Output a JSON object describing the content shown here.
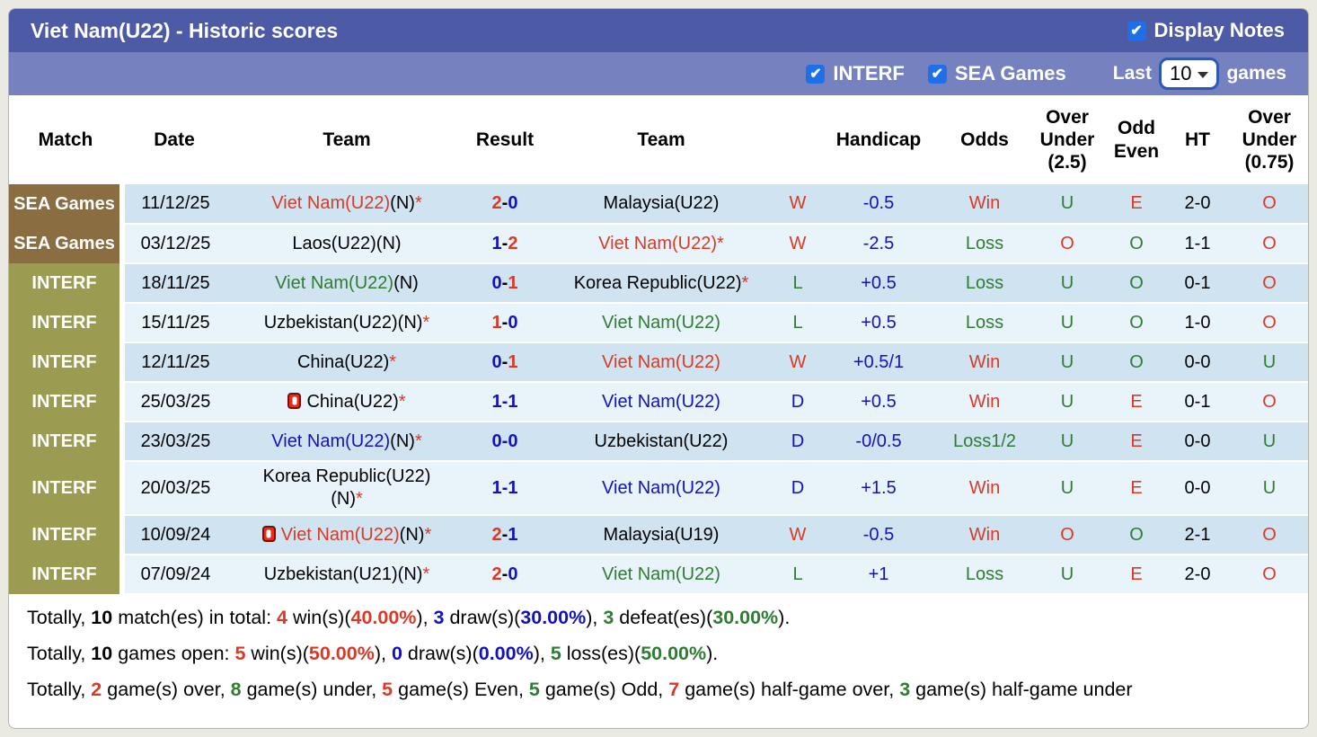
{
  "header": {
    "title": "Viet Nam(U22) - Historic scores",
    "display_notes_label": "Display Notes"
  },
  "filter_bar": {
    "interf_label": "INTERF",
    "sea_games_label": "SEA Games",
    "last_label": "Last",
    "games_label": "games",
    "last_games_value": "10"
  },
  "colors": {
    "title_bar": "#4d5ba6",
    "filter_bar": "#7682c0",
    "checkbox_blue": "#1e6fe8",
    "sea_games_cell": "#8a6d40",
    "interf_cell": "#9b9b51",
    "row_dark": "#cfe3f1",
    "row_light": "#e9f3fa",
    "win_red": "#d93a26",
    "draw_blue": "#1313bd",
    "loss_green": "#2e7d32"
  },
  "table": {
    "columns": [
      "Match",
      "Date",
      "Team",
      "Result",
      "Team",
      "",
      "Handicap",
      "Odds",
      "Over Under (2.5)",
      "Odd Even",
      "HT",
      "Over Under (0.75)"
    ],
    "rows": [
      {
        "match": "SEA Games",
        "match_type": "sea",
        "date": "11/12/25",
        "home_icon": false,
        "home": [
          {
            "t": "Viet Nam(U22)",
            "c": "red"
          },
          {
            "t": "(N)",
            "c": "black"
          },
          {
            "t": "*",
            "c": "red"
          }
        ],
        "result": [
          {
            "t": "2",
            "c": "red"
          },
          {
            "t": "-",
            "c": "black"
          },
          {
            "t": "0",
            "c": "blue"
          }
        ],
        "away_icon": false,
        "away": [
          {
            "t": "Malaysia(U22)",
            "c": "black"
          }
        ],
        "wdl": {
          "t": "W",
          "c": "red"
        },
        "handicap": "-0.5",
        "odds": {
          "t": "Win",
          "c": "red"
        },
        "ou25": {
          "t": "U",
          "c": "green"
        },
        "oddeven": {
          "t": "E",
          "c": "red"
        },
        "ht": "2-0",
        "ou075": {
          "t": "O",
          "c": "red"
        }
      },
      {
        "match": "SEA Games",
        "match_type": "sea",
        "date": "03/12/25",
        "home_icon": false,
        "home": [
          {
            "t": "Laos(U22)(N)",
            "c": "black"
          }
        ],
        "result": [
          {
            "t": "1",
            "c": "blue"
          },
          {
            "t": "-",
            "c": "black"
          },
          {
            "t": "2",
            "c": "red"
          }
        ],
        "away_icon": false,
        "away": [
          {
            "t": "Viet Nam(U22)",
            "c": "red"
          },
          {
            "t": "*",
            "c": "red"
          }
        ],
        "wdl": {
          "t": "W",
          "c": "red"
        },
        "handicap": "-2.5",
        "odds": {
          "t": "Loss",
          "c": "green"
        },
        "ou25": {
          "t": "O",
          "c": "red"
        },
        "oddeven": {
          "t": "O",
          "c": "green"
        },
        "ht": "1-1",
        "ou075": {
          "t": "O",
          "c": "red"
        }
      },
      {
        "match": "INTERF",
        "match_type": "interf",
        "date": "18/11/25",
        "home_icon": false,
        "home": [
          {
            "t": "Viet Nam(U22)",
            "c": "green"
          },
          {
            "t": "(N)",
            "c": "black"
          }
        ],
        "result": [
          {
            "t": "0",
            "c": "blue"
          },
          {
            "t": "-",
            "c": "black"
          },
          {
            "t": "1",
            "c": "red"
          }
        ],
        "away_icon": false,
        "away": [
          {
            "t": "Korea Republic(U22)",
            "c": "black"
          },
          {
            "t": "*",
            "c": "red"
          }
        ],
        "wdl": {
          "t": "L",
          "c": "green"
        },
        "handicap": "+0.5",
        "odds": {
          "t": "Loss",
          "c": "green"
        },
        "ou25": {
          "t": "U",
          "c": "green"
        },
        "oddeven": {
          "t": "O",
          "c": "green"
        },
        "ht": "0-1",
        "ou075": {
          "t": "O",
          "c": "red"
        }
      },
      {
        "match": "INTERF",
        "match_type": "interf",
        "date": "15/11/25",
        "home_icon": false,
        "home": [
          {
            "t": "Uzbekistan(U22)(N)",
            "c": "black"
          },
          {
            "t": "*",
            "c": "red"
          }
        ],
        "result": [
          {
            "t": "1",
            "c": "red"
          },
          {
            "t": "-",
            "c": "black"
          },
          {
            "t": "0",
            "c": "blue"
          }
        ],
        "away_icon": false,
        "away": [
          {
            "t": "Viet Nam(U22)",
            "c": "green"
          }
        ],
        "wdl": {
          "t": "L",
          "c": "green"
        },
        "handicap": "+0.5",
        "odds": {
          "t": "Loss",
          "c": "green"
        },
        "ou25": {
          "t": "U",
          "c": "green"
        },
        "oddeven": {
          "t": "O",
          "c": "green"
        },
        "ht": "1-0",
        "ou075": {
          "t": "O",
          "c": "red"
        }
      },
      {
        "match": "INTERF",
        "match_type": "interf",
        "date": "12/11/25",
        "home_icon": false,
        "home": [
          {
            "t": "China(U22)",
            "c": "black"
          },
          {
            "t": "*",
            "c": "red"
          }
        ],
        "result": [
          {
            "t": "0",
            "c": "blue"
          },
          {
            "t": "-",
            "c": "black"
          },
          {
            "t": "1",
            "c": "red"
          }
        ],
        "away_icon": false,
        "away": [
          {
            "t": "Viet Nam(U22)",
            "c": "red"
          }
        ],
        "wdl": {
          "t": "W",
          "c": "red"
        },
        "handicap": "+0.5/1",
        "odds": {
          "t": "Win",
          "c": "red"
        },
        "ou25": {
          "t": "U",
          "c": "green"
        },
        "oddeven": {
          "t": "O",
          "c": "green"
        },
        "ht": "0-0",
        "ou075": {
          "t": "U",
          "c": "green"
        }
      },
      {
        "match": "INTERF",
        "match_type": "interf",
        "date": "25/03/25",
        "home_icon": true,
        "home": [
          {
            "t": "China(U22)",
            "c": "black"
          },
          {
            "t": "*",
            "c": "red"
          }
        ],
        "result": [
          {
            "t": "1",
            "c": "blue"
          },
          {
            "t": "-",
            "c": "blue"
          },
          {
            "t": "1",
            "c": "blue"
          }
        ],
        "away_icon": false,
        "away": [
          {
            "t": "Viet Nam(U22)",
            "c": "blue"
          }
        ],
        "wdl": {
          "t": "D",
          "c": "blue"
        },
        "handicap": "+0.5",
        "odds": {
          "t": "Win",
          "c": "red"
        },
        "ou25": {
          "t": "U",
          "c": "green"
        },
        "oddeven": {
          "t": "E",
          "c": "red"
        },
        "ht": "0-1",
        "ou075": {
          "t": "O",
          "c": "red"
        }
      },
      {
        "match": "INTERF",
        "match_type": "interf",
        "date": "23/03/25",
        "home_icon": false,
        "home": [
          {
            "t": "Viet Nam(U22)",
            "c": "blue"
          },
          {
            "t": "(N)",
            "c": "black"
          },
          {
            "t": "*",
            "c": "red"
          }
        ],
        "result": [
          {
            "t": "0",
            "c": "blue"
          },
          {
            "t": "-",
            "c": "blue"
          },
          {
            "t": "0",
            "c": "blue"
          }
        ],
        "away_icon": false,
        "away": [
          {
            "t": "Uzbekistan(U22)",
            "c": "black"
          }
        ],
        "wdl": {
          "t": "D",
          "c": "blue"
        },
        "handicap": "-0/0.5",
        "odds": {
          "t": "Loss1/2",
          "c": "green"
        },
        "ou25": {
          "t": "U",
          "c": "green"
        },
        "oddeven": {
          "t": "E",
          "c": "red"
        },
        "ht": "0-0",
        "ou075": {
          "t": "U",
          "c": "green"
        }
      },
      {
        "match": "INTERF",
        "match_type": "interf",
        "date": "20/03/25",
        "home_icon": false,
        "home": [
          {
            "t": "Korea Republic(U22)",
            "c": "black"
          },
          {
            "t": "(N)",
            "c": "black",
            "nl": true
          },
          {
            "t": "*",
            "c": "red"
          }
        ],
        "result": [
          {
            "t": "1",
            "c": "blue"
          },
          {
            "t": "-",
            "c": "blue"
          },
          {
            "t": "1",
            "c": "blue"
          }
        ],
        "away_icon": false,
        "away": [
          {
            "t": "Viet Nam(U22)",
            "c": "blue"
          }
        ],
        "wdl": {
          "t": "D",
          "c": "blue"
        },
        "handicap": "+1.5",
        "odds": {
          "t": "Win",
          "c": "red"
        },
        "ou25": {
          "t": "U",
          "c": "green"
        },
        "oddeven": {
          "t": "E",
          "c": "red"
        },
        "ht": "0-0",
        "ou075": {
          "t": "U",
          "c": "green"
        }
      },
      {
        "match": "INTERF",
        "match_type": "interf",
        "date": "10/09/24",
        "home_icon": true,
        "home": [
          {
            "t": "Viet Nam(U22)",
            "c": "red"
          },
          {
            "t": "(N)",
            "c": "black"
          },
          {
            "t": "*",
            "c": "red"
          }
        ],
        "result": [
          {
            "t": "2",
            "c": "red"
          },
          {
            "t": "-",
            "c": "black"
          },
          {
            "t": "1",
            "c": "blue"
          }
        ],
        "away_icon": false,
        "away": [
          {
            "t": "Malaysia(U19)",
            "c": "black"
          }
        ],
        "wdl": {
          "t": "W",
          "c": "red"
        },
        "handicap": "-0.5",
        "odds": {
          "t": "Win",
          "c": "red"
        },
        "ou25": {
          "t": "O",
          "c": "red"
        },
        "oddeven": {
          "t": "O",
          "c": "green"
        },
        "ht": "2-1",
        "ou075": {
          "t": "O",
          "c": "red"
        }
      },
      {
        "match": "INTERF",
        "match_type": "interf",
        "date": "07/09/24",
        "home_icon": false,
        "home": [
          {
            "t": "Uzbekistan(U21)(N)",
            "c": "black"
          },
          {
            "t": "*",
            "c": "red"
          }
        ],
        "result": [
          {
            "t": "2",
            "c": "red"
          },
          {
            "t": "-",
            "c": "black"
          },
          {
            "t": "0",
            "c": "blue"
          }
        ],
        "away_icon": false,
        "away": [
          {
            "t": "Viet Nam(U22)",
            "c": "green"
          }
        ],
        "wdl": {
          "t": "L",
          "c": "green"
        },
        "handicap": "+1",
        "odds": {
          "t": "Loss",
          "c": "green"
        },
        "ou25": {
          "t": "U",
          "c": "green"
        },
        "oddeven": {
          "t": "E",
          "c": "red"
        },
        "ht": "2-0",
        "ou075": {
          "t": "O",
          "c": "red"
        }
      }
    ]
  },
  "summary": {
    "lines": [
      [
        {
          "t": "Totally, ",
          "c": "black"
        },
        {
          "t": "10",
          "c": "black",
          "b": true
        },
        {
          "t": " match(es) in total: ",
          "c": "black"
        },
        {
          "t": "4",
          "c": "red",
          "b": true
        },
        {
          "t": " win(s)(",
          "c": "black"
        },
        {
          "t": "40.00%",
          "c": "red",
          "b": true
        },
        {
          "t": "), ",
          "c": "black"
        },
        {
          "t": "3",
          "c": "blue",
          "b": true
        },
        {
          "t": " draw(s)(",
          "c": "black"
        },
        {
          "t": "30.00%",
          "c": "blue",
          "b": true
        },
        {
          "t": "), ",
          "c": "black"
        },
        {
          "t": "3",
          "c": "green",
          "b": true
        },
        {
          "t": " defeat(es)(",
          "c": "black"
        },
        {
          "t": "30.00%",
          "c": "green",
          "b": true
        },
        {
          "t": ").",
          "c": "black"
        }
      ],
      [
        {
          "t": "Totally, ",
          "c": "black"
        },
        {
          "t": "10",
          "c": "black",
          "b": true
        },
        {
          "t": " games open: ",
          "c": "black"
        },
        {
          "t": "5",
          "c": "red",
          "b": true
        },
        {
          "t": " win(s)(",
          "c": "black"
        },
        {
          "t": "50.00%",
          "c": "red",
          "b": true
        },
        {
          "t": "), ",
          "c": "black"
        },
        {
          "t": "0",
          "c": "blue",
          "b": true
        },
        {
          "t": " draw(s)(",
          "c": "black"
        },
        {
          "t": "0.00%",
          "c": "blue",
          "b": true
        },
        {
          "t": "), ",
          "c": "black"
        },
        {
          "t": "5",
          "c": "green",
          "b": true
        },
        {
          "t": " loss(es)(",
          "c": "black"
        },
        {
          "t": "50.00%",
          "c": "green",
          "b": true
        },
        {
          "t": ").",
          "c": "black"
        }
      ],
      [
        {
          "t": "Totally, ",
          "c": "black"
        },
        {
          "t": "2",
          "c": "red",
          "b": true
        },
        {
          "t": " game(s) over, ",
          "c": "black"
        },
        {
          "t": "8",
          "c": "green",
          "b": true
        },
        {
          "t": " game(s) under, ",
          "c": "black"
        },
        {
          "t": "5",
          "c": "red",
          "b": true
        },
        {
          "t": " game(s) Even, ",
          "c": "black"
        },
        {
          "t": "5",
          "c": "green",
          "b": true
        },
        {
          "t": " game(s) Odd, ",
          "c": "black"
        },
        {
          "t": "7",
          "c": "red",
          "b": true
        },
        {
          "t": " game(s) half-game over, ",
          "c": "black"
        },
        {
          "t": "3",
          "c": "green",
          "b": true
        },
        {
          "t": " game(s) half-game under",
          "c": "black"
        }
      ]
    ]
  }
}
